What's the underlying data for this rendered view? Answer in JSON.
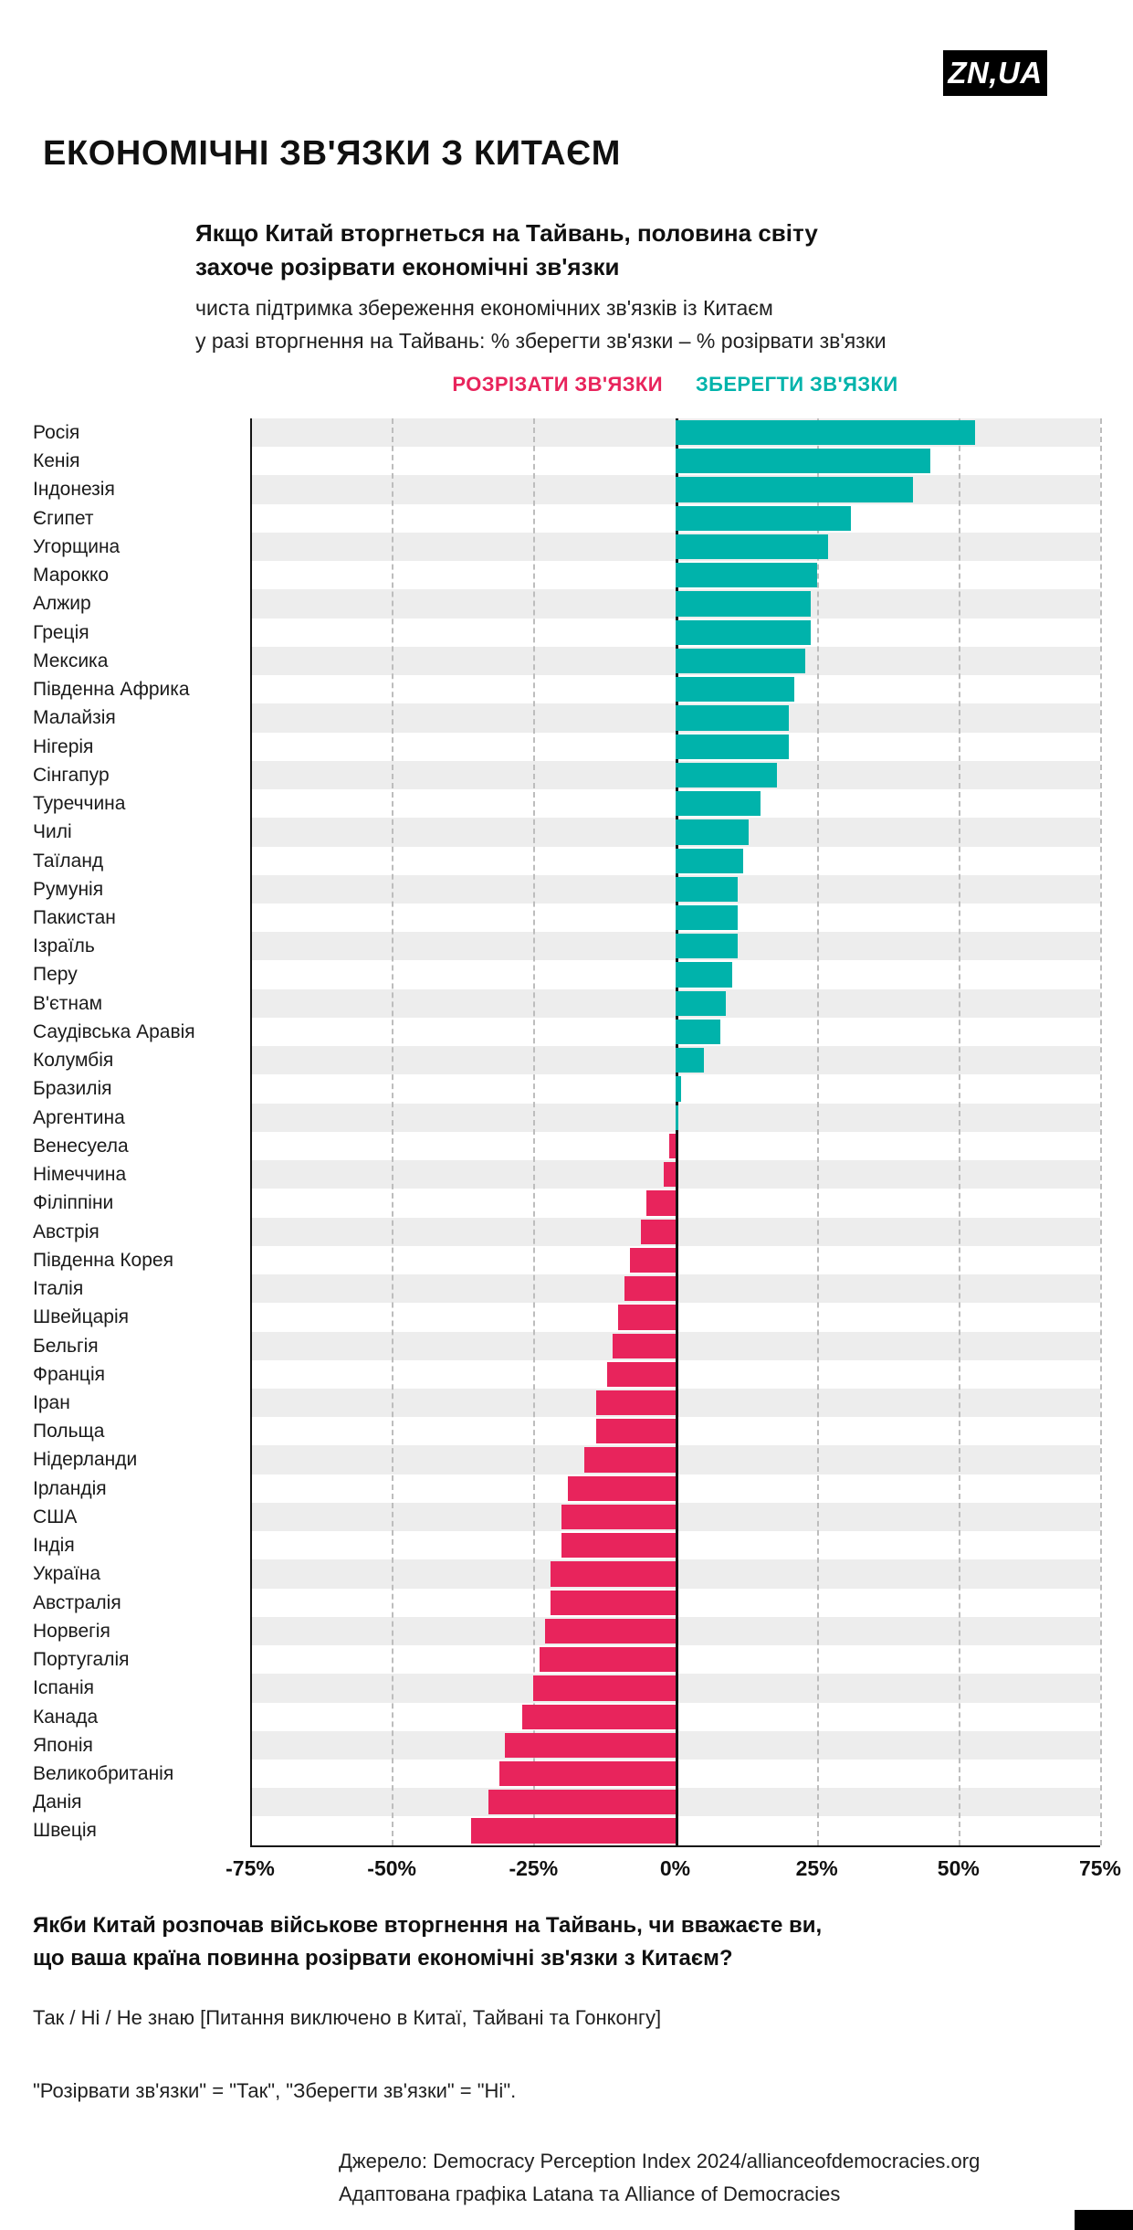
{
  "logo": {
    "text": "ZN,UA"
  },
  "title": "ЕКОНОМІЧНІ ЗВ'ЯЗКИ З КИТАЄМ",
  "header": {
    "subtitle_lines": [
      "Якщо Китай вторгнеться на Тайвань, половина світу",
      "захоче розірвати економічні зв'язки"
    ],
    "description_lines": [
      "чиста підтримка збереження економічних зв'язків із Китаєм",
      "у разі вторгнення на Тайвань: % зберегти зв'язки – % розірвати зв'язки"
    ]
  },
  "legend": {
    "break_label": "РОЗРІЗАТИ ЗВ'ЯЗКИ",
    "keep_label": "ЗБЕРЕГТИ ЗВ'ЯЗКИ",
    "break_color": "#e8245c",
    "keep_color": "#00b3ab"
  },
  "chart_data": {
    "type": "bar",
    "orientation": "horizontal",
    "title": "Якщо Китай вторгнеться на Тайвань, половина світу захоче розірвати економічні зв'язки",
    "subtitle": "чиста підтримка збереження економічних зв'язків із Китаєм у разі вторгнення на Тайвань: % зберегти зв'язки – % розірвати зв'язки",
    "xlabel": "",
    "ylabel": "",
    "xlim": [
      -75,
      75
    ],
    "x_ticks": [
      "-75%",
      "-50%",
      "-25%",
      "0%",
      "25%",
      "50%",
      "75%"
    ],
    "unit": "%",
    "grid": "dashed-vertical",
    "legend_position": "top-center",
    "positive_color": "#00b3ab",
    "negative_color": "#e8245c",
    "stripe_color": "#ededed",
    "legend": [
      "РОЗРІЗАТИ ЗВ'ЯЗКИ",
      "ЗБЕРЕГТИ ЗВ'ЯЗКИ"
    ],
    "categories": [
      "Росія",
      "Кенія",
      "Індонезія",
      "Єгипет",
      "Угорщина",
      "Марокко",
      "Алжир",
      "Греція",
      "Мексика",
      "Південна Африка",
      "Малайзія",
      "Нігерія",
      "Сінгапур",
      "Туреччина",
      "Чилі",
      "Таїланд",
      "Румунія",
      "Пакистан",
      "Ізраїль",
      "Перу",
      "В'єтнам",
      "Саудівська Аравія",
      "Колумбія",
      "Бразилія",
      "Аргентина",
      "Венесуела",
      "Німеччина",
      "Філіппіни",
      "Австрія",
      "Південна Корея",
      "Італія",
      "Швейцарія",
      "Бельгія",
      "Франція",
      "Іран",
      "Польща",
      "Нідерланди",
      "Ірландія",
      "США",
      "Індія",
      "Україна",
      "Австралія",
      "Норвегія",
      "Португалія",
      "Іспанія",
      "Канада",
      "Японія",
      "Великобританія",
      "Данія",
      "Швеція"
    ],
    "values": [
      53,
      45,
      42,
      31,
      27,
      25,
      24,
      24,
      23,
      21,
      20,
      20,
      18,
      15,
      13,
      12,
      11,
      11,
      11,
      10,
      9,
      8,
      5,
      1,
      0.5,
      -1,
      -2,
      -5,
      -6,
      -8,
      -9,
      -10,
      -11,
      -12,
      -14,
      -14,
      -16,
      -19,
      -20,
      -20,
      -22,
      -22,
      -23,
      -24,
      -25,
      -27,
      -30,
      -31,
      -33,
      -36
    ]
  },
  "footer": {
    "question_lines": [
      "Якби Китай розпочав військове вторгнення на Тайвань, чи вважаєте ви,",
      "що ваша країна повинна розірвати економічні зв'язки з Китаєм?"
    ],
    "answers": "Так / Ні / Не знаю [Питання виключено в Китаї, Тайвані та Гонконгу]",
    "note": "\"Розірвати зв'язки\" = \"Так\", \"Зберегти зв'язки\" = \"Ні\".",
    "source_lines": [
      "Джерело: Democracy Perception Index 2024/allianceofdemocracies.org",
      "Адаптована графіка Latana та Alliance of Democracies"
    ]
  }
}
